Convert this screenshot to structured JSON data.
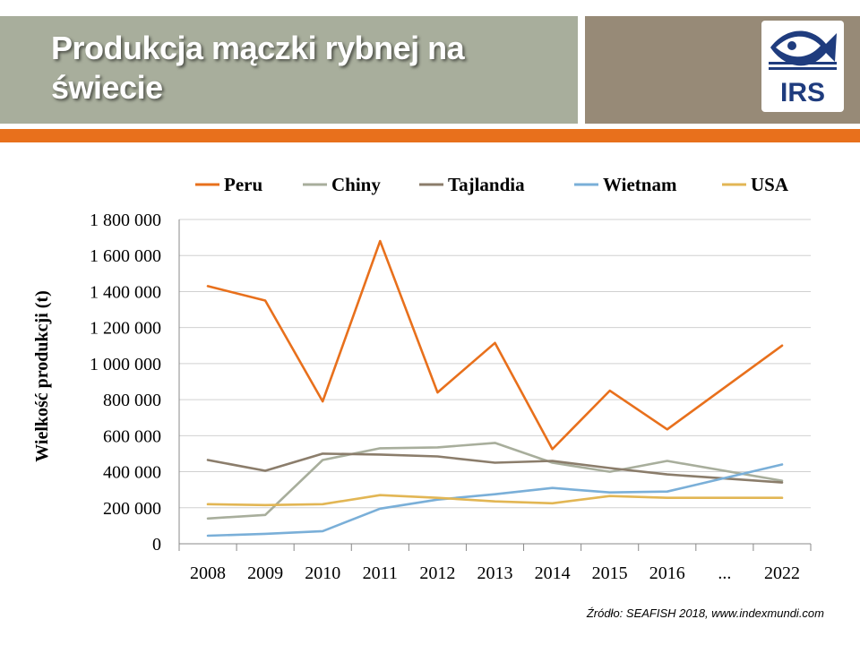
{
  "slide": {
    "title": "Produkcja mączki rybnej na świecie",
    "logo_text": "IRS",
    "source": "Źródło: SEAFISH 2018, www.indexmundi.com"
  },
  "colors": {
    "header_left": "#a8ae9c",
    "header_right": "#978a77",
    "accent_bar": "#e8701c",
    "logo_blue": "#1f3c7e"
  },
  "chart_data": {
    "type": "line",
    "title": "",
    "xlabel": "",
    "ylabel": "Wielkość produkcji (t)",
    "ylim": [
      0,
      1800000
    ],
    "y_ticks": [
      0,
      200000,
      400000,
      600000,
      800000,
      1000000,
      1200000,
      1400000,
      1600000,
      1800000
    ],
    "y_tick_labels": [
      "0",
      "200 000",
      "400 000",
      "600 000",
      "800 000",
      "1 000 000",
      "1 200 000",
      "1 400 000",
      "1 600 000",
      "1 800 000"
    ],
    "categories": [
      "2008",
      "2009",
      "2010",
      "2011",
      "2012",
      "2013",
      "2014",
      "2015",
      "2016",
      "...",
      "2022"
    ],
    "grid": "horizontal",
    "legend_position": "top",
    "series": [
      {
        "name": "Peru",
        "color": "#e8701c",
        "values": [
          1430000,
          1350000,
          790000,
          1680000,
          840000,
          1115000,
          525000,
          850000,
          635000,
          null,
          1100000
        ]
      },
      {
        "name": "Chiny",
        "color": "#a8ae9c",
        "values": [
          140000,
          160000,
          465000,
          530000,
          535000,
          560000,
          450000,
          400000,
          460000,
          null,
          350000
        ]
      },
      {
        "name": "Tajlandia",
        "color": "#8b7d6b",
        "values": [
          465000,
          405000,
          500000,
          495000,
          485000,
          450000,
          460000,
          420000,
          385000,
          null,
          340000
        ]
      },
      {
        "name": "Wietnam",
        "color": "#7aafd8",
        "values": [
          45000,
          55000,
          70000,
          195000,
          245000,
          275000,
          310000,
          285000,
          290000,
          null,
          440000
        ]
      },
      {
        "name": "USA",
        "color": "#e2b654",
        "values": [
          220000,
          215000,
          220000,
          270000,
          255000,
          235000,
          225000,
          265000,
          255000,
          null,
          255000
        ]
      }
    ]
  }
}
